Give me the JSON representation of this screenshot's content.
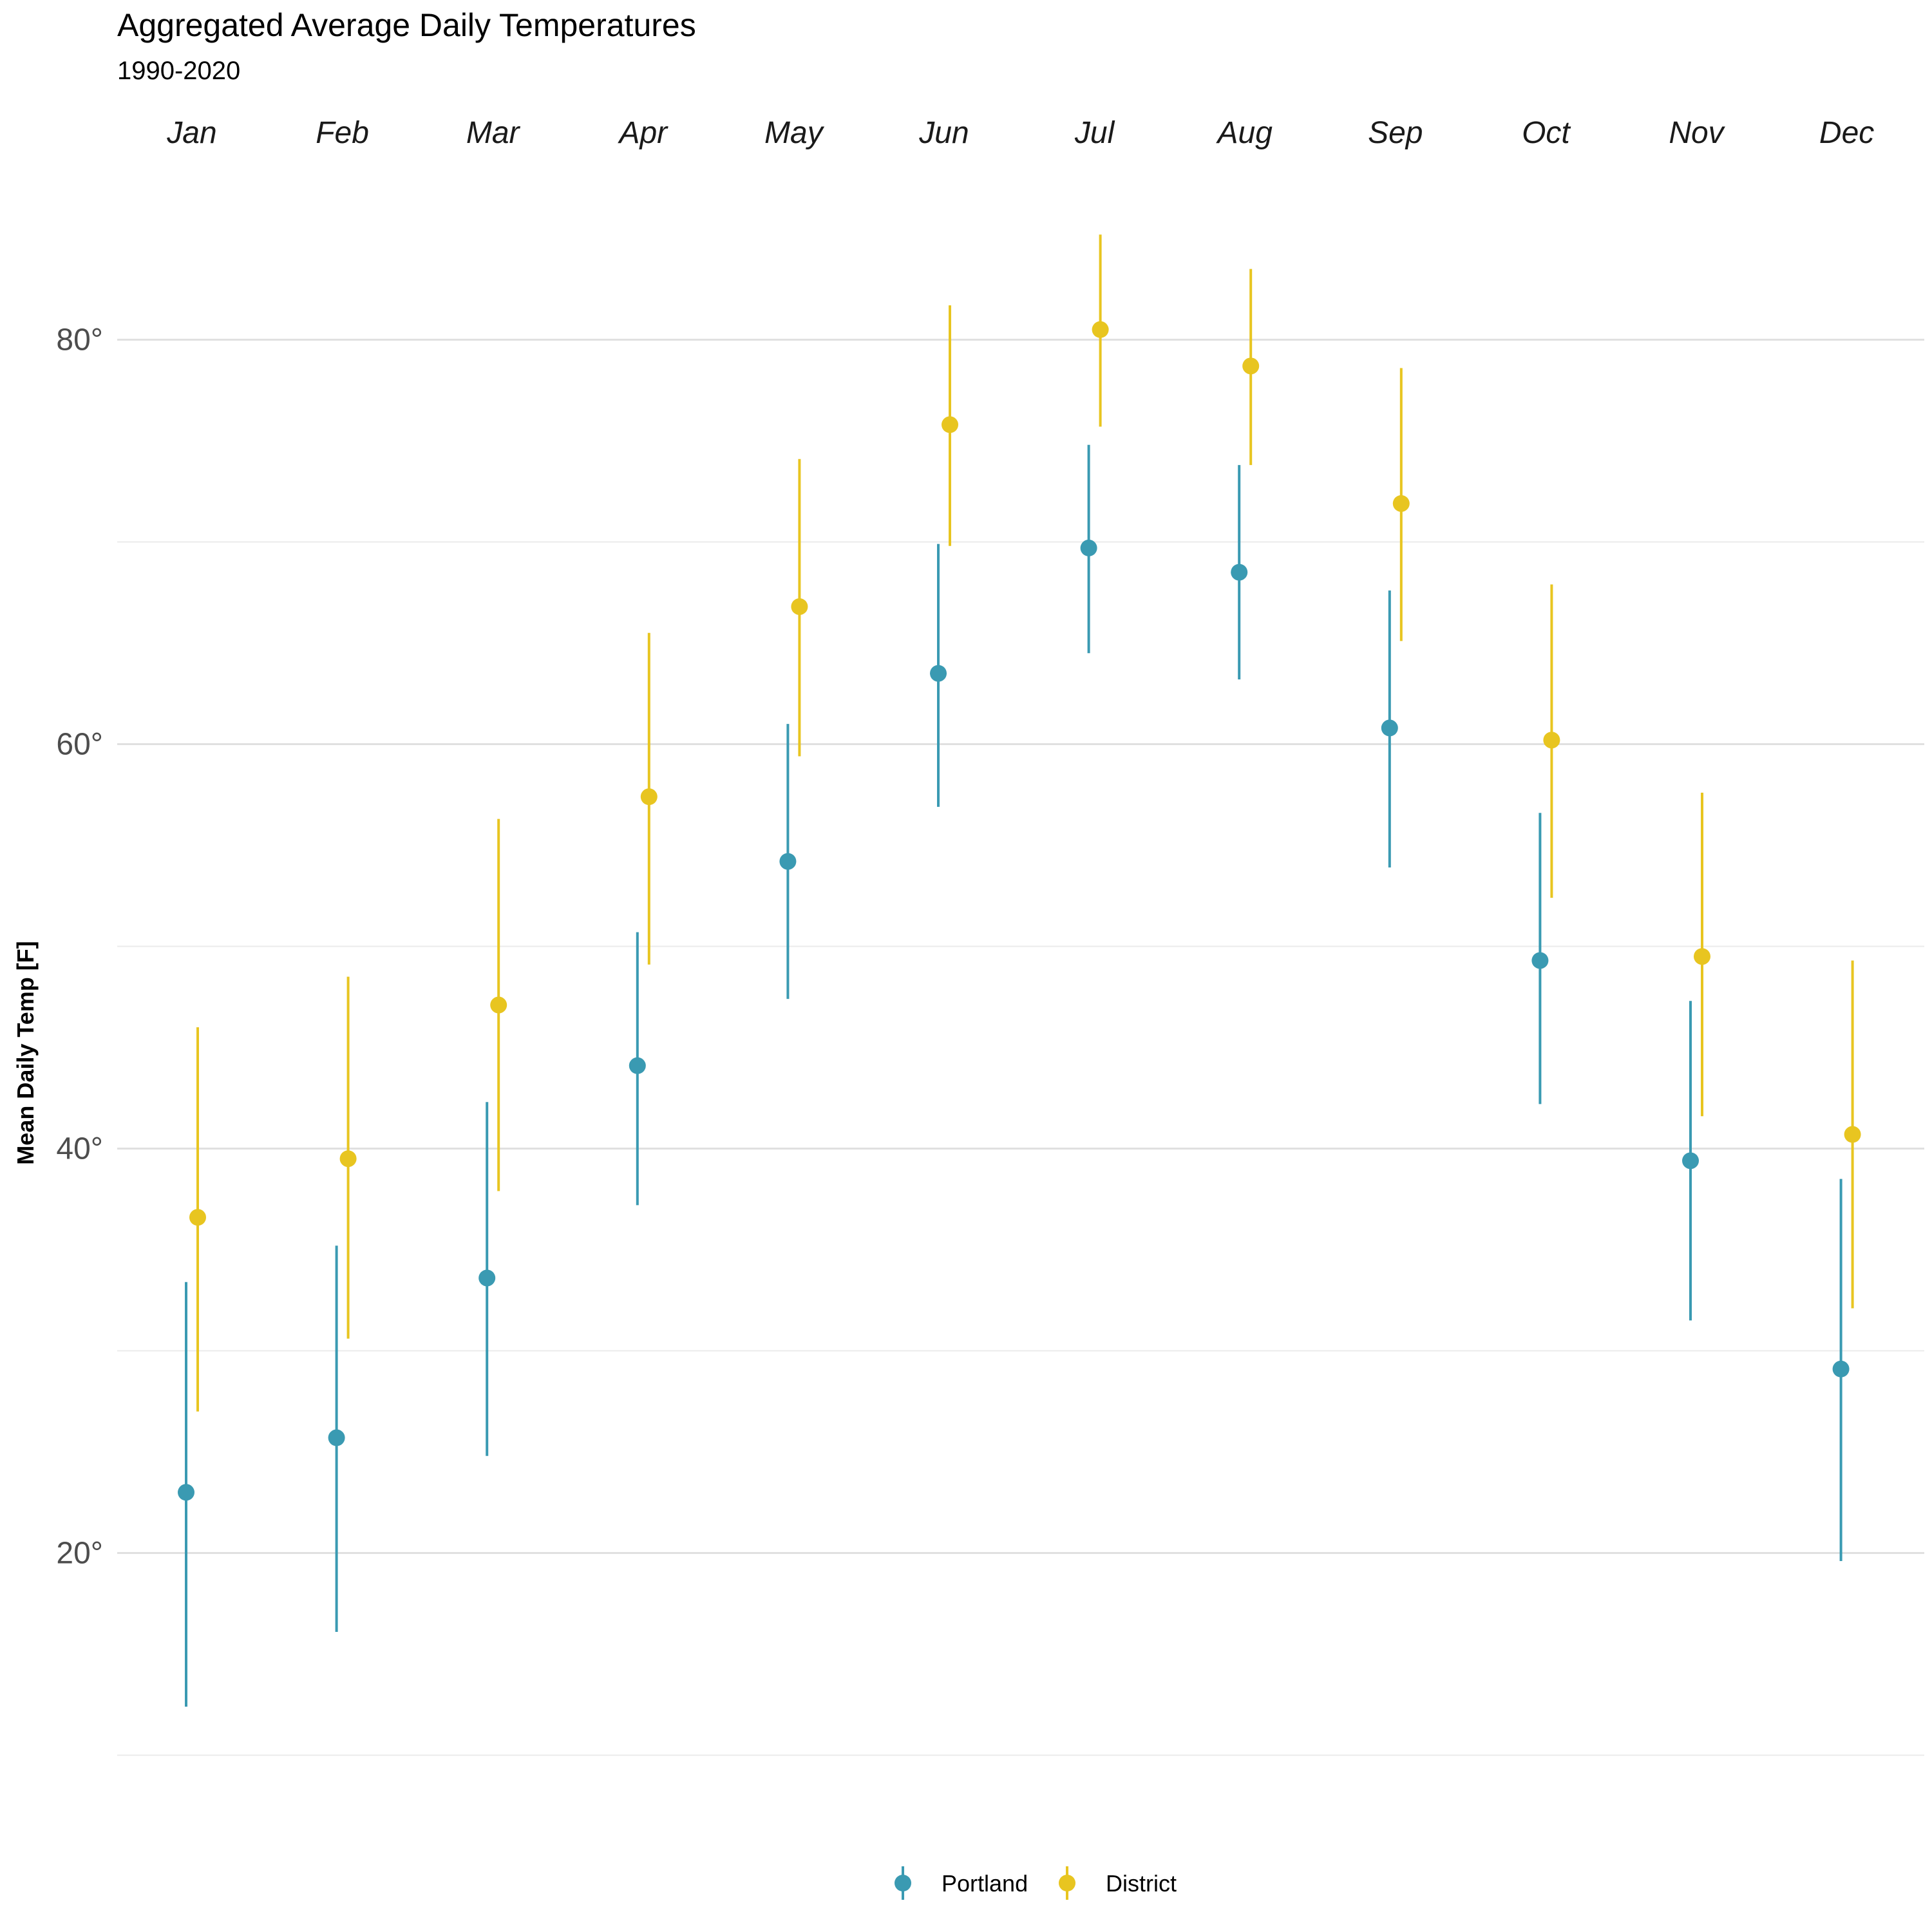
{
  "chart_data": {
    "type": "scatter",
    "title": "Aggregated Average Daily Temperatures",
    "subtitle": "1990-2020",
    "xlabel": "",
    "ylabel": "Mean Daily Temp [F]",
    "categories": [
      "Jan",
      "Feb",
      "Mar",
      "Apr",
      "May",
      "Jun",
      "Jul",
      "Aug",
      "Sep",
      "Oct",
      "Nov",
      "Dec"
    ],
    "category_axis_position": "top",
    "ylim": [
      10,
      88
    ],
    "yticks": [
      20,
      40,
      60,
      80
    ],
    "ytick_labels": [
      "20°",
      "40°",
      "60°",
      "80°"
    ],
    "minor_gridlines": [
      10,
      30,
      50,
      70
    ],
    "grid": true,
    "legend_position": "bottom",
    "series": [
      {
        "name": "Portland",
        "color": "#3a9ab2",
        "mean": [
          23.0,
          25.7,
          33.6,
          44.1,
          54.2,
          63.5,
          69.7,
          68.5,
          60.8,
          49.3,
          39.4,
          29.1
        ],
        "low": [
          12.4,
          16.1,
          24.8,
          37.2,
          47.4,
          56.9,
          64.5,
          63.2,
          53.9,
          42.2,
          31.5,
          19.6
        ],
        "high": [
          33.4,
          35.2,
          42.3,
          50.7,
          61.0,
          69.9,
          74.8,
          73.8,
          67.6,
          56.6,
          47.3,
          38.5
        ]
      },
      {
        "name": "District",
        "color": "#e8c520",
        "mean": [
          36.6,
          39.5,
          47.1,
          57.4,
          66.8,
          75.8,
          80.5,
          78.7,
          71.9,
          60.2,
          49.5,
          40.7
        ],
        "low": [
          27.0,
          30.6,
          37.9,
          49.1,
          59.4,
          69.8,
          75.7,
          73.8,
          65.1,
          52.4,
          41.6,
          32.1
        ],
        "high": [
          46.0,
          48.5,
          56.3,
          65.5,
          74.1,
          81.7,
          85.2,
          83.5,
          78.6,
          67.9,
          57.6,
          49.3
        ]
      }
    ]
  }
}
